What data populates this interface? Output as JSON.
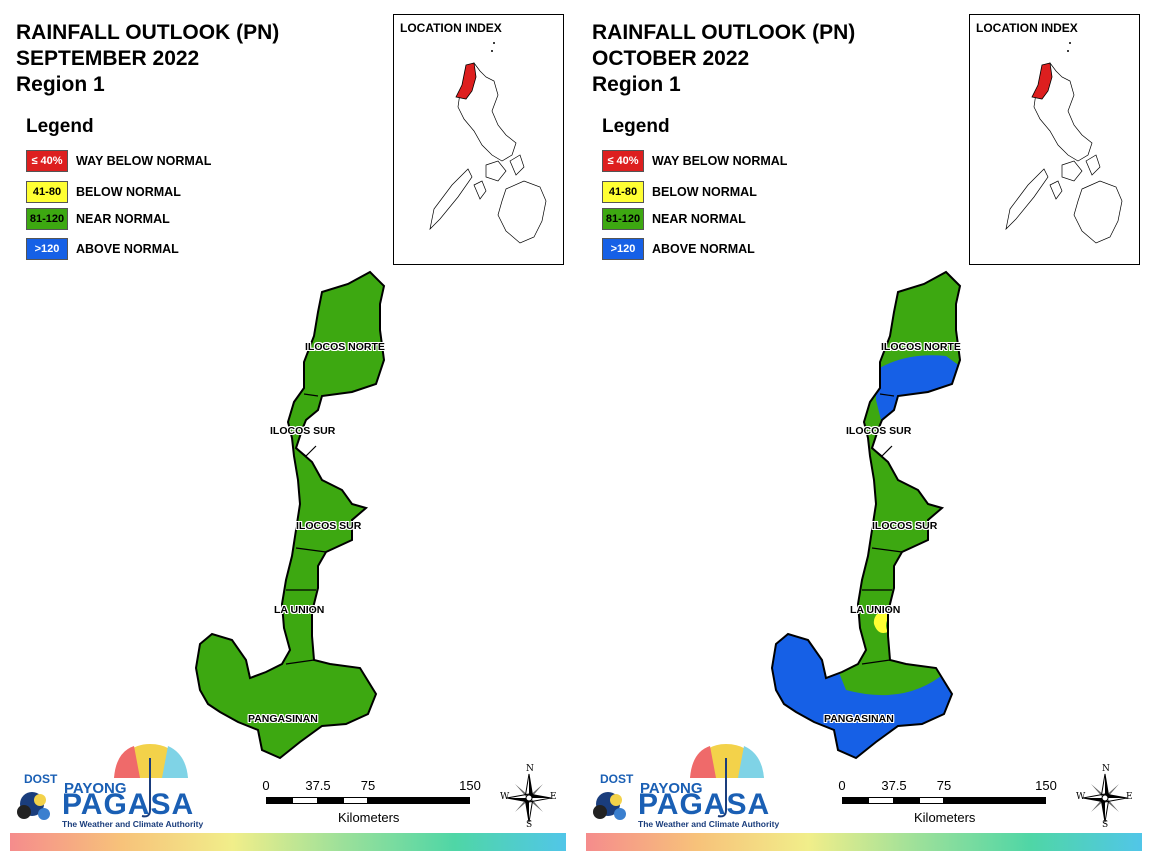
{
  "colors": {
    "way_below": "#dd1f1f",
    "below": "#ffff33",
    "near": "#3da811",
    "above": "#1660e6"
  },
  "panels": [
    {
      "title_line1": "RAINFALL OUTLOOK (PN)",
      "title_line2": "SEPTEMBER 2022",
      "title_line3": "Region 1",
      "legend_title": "Legend",
      "legend": [
        {
          "range": "≤ 40%",
          "label": "WAY BELOW NORMAL"
        },
        {
          "range": "41-80",
          "label": "BELOW NORMAL"
        },
        {
          "range": "81-120",
          "label": "NEAR NORMAL"
        },
        {
          "range": ">120",
          "label": "ABOVE NORMAL"
        }
      ],
      "inset_title": "LOCATION INDEX",
      "provinces": [
        "ILOCOS NORTE",
        "ILOCOS SUR",
        "ILOCOS SUR",
        "LA UNION",
        "PANGASINAN"
      ],
      "logo": {
        "dost": "DOST",
        "payong": "PAYONG",
        "pagasa": "PAGASA",
        "tagline": "The Weather and Climate Authority"
      },
      "scale": {
        "ticks": [
          "0",
          "37.5",
          "75",
          "150"
        ],
        "units": "Kilometers"
      },
      "compass": {
        "n": "N",
        "s": "S",
        "e": "E",
        "w": "W"
      }
    },
    {
      "title_line1": "RAINFALL OUTLOOK (PN)",
      "title_line2": "OCTOBER 2022",
      "title_line3": "Region 1",
      "legend_title": "Legend",
      "legend": [
        {
          "range": "≤ 40%",
          "label": "WAY BELOW NORMAL"
        },
        {
          "range": "41-80",
          "label": "BELOW NORMAL"
        },
        {
          "range": "81-120",
          "label": "NEAR NORMAL"
        },
        {
          "range": ">120",
          "label": "ABOVE NORMAL"
        }
      ],
      "inset_title": "LOCATION INDEX",
      "provinces": [
        "ILOCOS NORTE",
        "ILOCOS SUR",
        "ILOCOS SUR",
        "LA UNION",
        "PANGASINAN"
      ],
      "logo": {
        "dost": "DOST",
        "payong": "PAYONG",
        "pagasa": "PAGASA",
        "tagline": "The Weather and Climate Authority"
      },
      "scale": {
        "ticks": [
          "0",
          "37.5",
          "75",
          "150"
        ],
        "units": "Kilometers"
      },
      "compass": {
        "n": "N",
        "s": "S",
        "e": "E",
        "w": "W"
      }
    }
  ]
}
